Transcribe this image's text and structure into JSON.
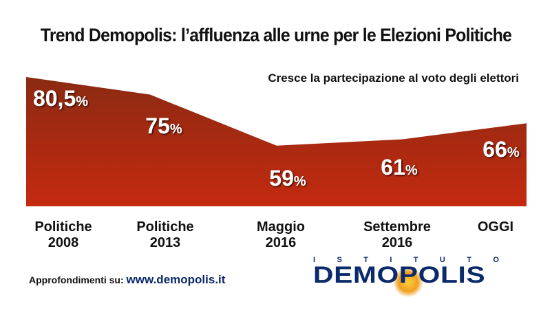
{
  "title": "Trend Demopolis: l’affluenza alle urne per le Elezioni Politiche",
  "chart_data": {
    "type": "area",
    "title": "Trend Demopolis: l’affluenza alle urne per le Elezioni Politiche",
    "subtitle": "Cresce la partecipazione al voto degli elettori",
    "categories": [
      [
        "Politiche",
        "2008"
      ],
      [
        "Politiche",
        "2013"
      ],
      [
        "Maggio",
        "2016"
      ],
      [
        "Settembre",
        "2016"
      ],
      [
        "OGGI"
      ]
    ],
    "values": [
      80.5,
      75,
      59,
      61,
      66
    ],
    "data_labels": [
      {
        "number": "80,5",
        "unit": "%"
      },
      {
        "number": "75",
        "unit": "%"
      },
      {
        "number": "59",
        "unit": "%"
      },
      {
        "number": "61",
        "unit": "%"
      },
      {
        "number": "66",
        "unit": "%"
      }
    ],
    "unit": "%",
    "ylim": [
      40,
      82
    ],
    "xlabel": "",
    "ylabel": "",
    "grid": false,
    "colors": {
      "fill_top": "#8b2a12",
      "fill_bottom": "#c42a10"
    }
  },
  "footer": {
    "label": "Approfondimenti su:",
    "url": "www.demopolis.it"
  },
  "logo": {
    "top": "I S T I T U T O",
    "top_letters": [
      "I",
      "S",
      "T",
      "I",
      "T",
      "U",
      "T",
      "O"
    ],
    "main": "DEMOPOLIS"
  }
}
